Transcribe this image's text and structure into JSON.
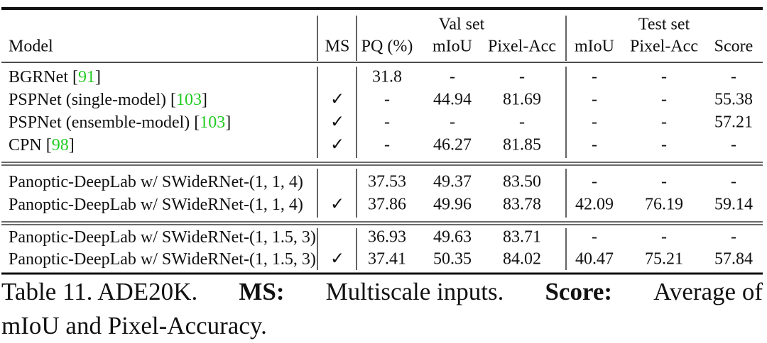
{
  "table": {
    "group_headers": [
      "Val set",
      "Test set"
    ],
    "headers": [
      "Model",
      "MS",
      "PQ (%)",
      "mIoU",
      "Pixel-Acc",
      "mIoU",
      "Pixel-Acc",
      "Score"
    ],
    "groups": [
      {
        "rows": [
          {
            "model": [
              "BGRNet [",
              "91",
              "]"
            ],
            "ms": null,
            "cells": [
              "31.8",
              "-",
              "-",
              "-",
              "-",
              "-"
            ]
          },
          {
            "model": [
              "PSPNet (single-model) [",
              "103",
              "]"
            ],
            "ms": "✓",
            "cells": [
              "-",
              "44.94",
              "81.69",
              "-",
              "-",
              "55.38"
            ]
          },
          {
            "model": [
              "PSPNet (ensemble-model) [",
              "103",
              "]"
            ],
            "ms": "✓",
            "cells": [
              "-",
              "-",
              "-",
              "-",
              "-",
              "57.21"
            ]
          },
          {
            "model": [
              "CPN [",
              "98",
              "]"
            ],
            "ms": "✓",
            "cells": [
              "-",
              "46.27",
              "81.85",
              "-",
              "-",
              "-"
            ]
          }
        ]
      },
      {
        "rows": [
          {
            "model": [
              "Panoptic-DeepLab w/ SWideRNet-(1, 1, 4)"
            ],
            "ms": null,
            "cells": [
              "37.53",
              "49.37",
              "83.50",
              "-",
              "-",
              "-"
            ]
          },
          {
            "model": [
              "Panoptic-DeepLab w/ SWideRNet-(1, 1, 4)"
            ],
            "ms": "✓",
            "cells": [
              "37.86",
              "49.96",
              "83.78",
              "42.09",
              "76.19",
              "59.14"
            ]
          }
        ]
      },
      {
        "rows": [
          {
            "model": [
              "Panoptic-DeepLab w/ SWideRNet-(1, 1.5, 3)"
            ],
            "ms": null,
            "cells": [
              "36.93",
              "49.63",
              "83.71",
              "-",
              "-",
              "-"
            ]
          },
          {
            "model": [
              "Panoptic-DeepLab w/ SWideRNet-(1, 1.5, 3)"
            ],
            "ms": "✓",
            "cells": [
              "37.41",
              "50.35",
              "84.02",
              "40.47",
              "75.21",
              "57.84"
            ]
          }
        ]
      }
    ]
  },
  "caption": {
    "lines": [
      [
        {
          "text": "Table 11. ADE20K."
        },
        {
          "text": "MS:",
          "bold": true
        },
        {
          "text": "Multiscale inputs."
        },
        {
          "text": "Score:",
          "bold": true
        },
        {
          "text": "Average of"
        }
      ],
      [
        {
          "text": "mIoU and Pixel-Accuracy."
        }
      ]
    ]
  }
}
